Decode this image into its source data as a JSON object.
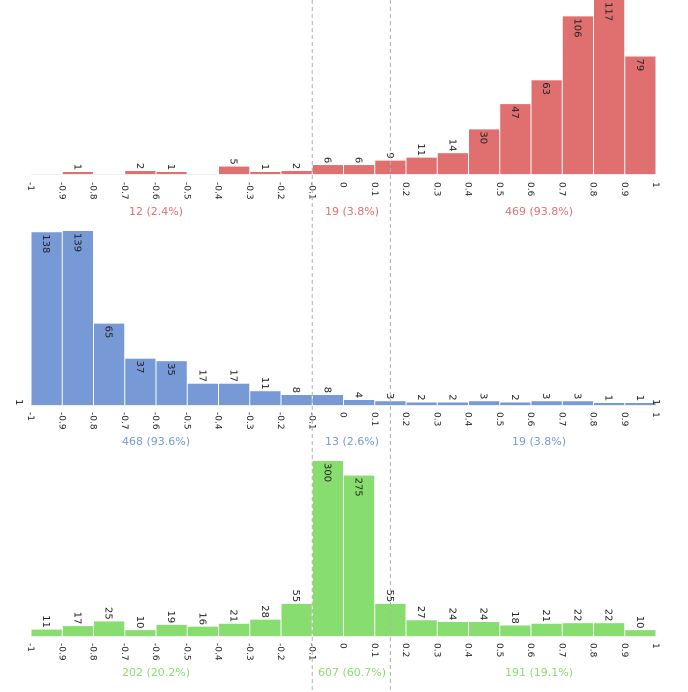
{
  "chart_data": [
    {
      "type": "bar",
      "panel": "top",
      "color": "#e07070",
      "bin_edges": [
        -1,
        -0.9,
        -0.8,
        -0.7,
        -0.6,
        -0.5,
        -0.4,
        -0.3,
        -0.2,
        -0.1,
        0,
        0.1,
        0.2,
        0.3,
        0.4,
        0.5,
        0.6,
        0.7,
        0.8,
        0.9,
        1
      ],
      "tick_labels": [
        "-1",
        "-0.9",
        "-0.8",
        "-0.7",
        "-0.6",
        "-0.5",
        "-0.4",
        "-0.3",
        "-0.2",
        "-0.1",
        "0",
        "0.1",
        "0.2",
        "0.3",
        "0.4",
        "0.5",
        "0.6",
        "0.7",
        "0.8",
        "0.9",
        "1"
      ],
      "values": [
        0,
        1,
        0,
        2,
        1,
        0,
        5,
        1,
        2,
        6,
        6,
        9,
        11,
        14,
        30,
        47,
        63,
        106,
        117,
        79
      ],
      "value_labels": [
        "",
        "1",
        "",
        "2",
        "1",
        "",
        "5",
        "1",
        "2",
        "6",
        "6",
        "9",
        "11",
        "14",
        "30",
        "47",
        "63",
        "106",
        "117",
        "79"
      ],
      "summaries": [
        "12 (2.4%)",
        "19 (3.8%)",
        "469 (93.8%)"
      ]
    },
    {
      "type": "bar",
      "panel": "middle",
      "color": "#7799d5",
      "bin_edges": [
        -1,
        -0.9,
        -0.8,
        -0.7,
        -0.6,
        -0.5,
        -0.4,
        -0.3,
        -0.2,
        -0.1,
        0,
        0.1,
        0.2,
        0.3,
        0.4,
        0.5,
        0.6,
        0.7,
        0.8,
        0.9,
        1
      ],
      "tick_labels": [
        "-1",
        "-0.9",
        "-0.8",
        "-0.7",
        "-0.6",
        "-0.5",
        "-0.4",
        "-0.3",
        "-0.2",
        "-0.1",
        "0",
        "0.1",
        "0.2",
        "0.3",
        "0.4",
        "0.5",
        "0.6",
        "0.7",
        "0.8",
        "0.9",
        "1"
      ],
      "values": [
        138,
        139,
        65,
        37,
        35,
        17,
        17,
        11,
        8,
        8,
        4,
        3,
        2,
        2,
        3,
        2,
        3,
        3,
        1,
        1
      ],
      "value_labels": [
        "138",
        "139",
        "65",
        "37",
        "35",
        "17",
        "17",
        "11",
        "8",
        "8",
        "4",
        "3",
        "2",
        "2",
        "3",
        "2",
        "3",
        "3",
        "1",
        "1"
      ],
      "extra_labels": [
        "1",
        "1"
      ],
      "summaries": [
        "468 (93.6%)",
        "13 (2.6%)",
        "19 (3.8%)"
      ]
    },
    {
      "type": "bar",
      "panel": "bottom",
      "color": "#88dd6f",
      "bin_edges": [
        -1,
        -0.9,
        -0.8,
        -0.7,
        -0.6,
        -0.5,
        -0.4,
        -0.3,
        -0.2,
        -0.1,
        0,
        0.1,
        0.2,
        0.3,
        0.4,
        0.5,
        0.6,
        0.7,
        0.8,
        0.9,
        1
      ],
      "tick_labels": [
        "-1",
        "-0.9",
        "-0.8",
        "-0.7",
        "-0.6",
        "-0.5",
        "-0.4",
        "-0.3",
        "-0.2",
        "-0.1",
        "0",
        "0.1",
        "0.2",
        "0.3",
        "0.4",
        "0.5",
        "0.6",
        "0.7",
        "0.8",
        "0.9",
        "1"
      ],
      "values": [
        11,
        17,
        25,
        10,
        19,
        16,
        21,
        28,
        55,
        300,
        275,
        55,
        27,
        24,
        24,
        18,
        21,
        22,
        22,
        10
      ],
      "value_labels": [
        "11",
        "17",
        "25",
        "10",
        "19",
        "16",
        "21",
        "28",
        "55",
        "300",
        "275",
        "55",
        "27",
        "24",
        "24",
        "18",
        "21",
        "22",
        "22",
        "10"
      ],
      "summaries": [
        "202 (20.2%)",
        "607 (60.7%)",
        "191 (19.1%)"
      ]
    }
  ],
  "threshold_lines": [
    -0.1,
    0.15
  ]
}
